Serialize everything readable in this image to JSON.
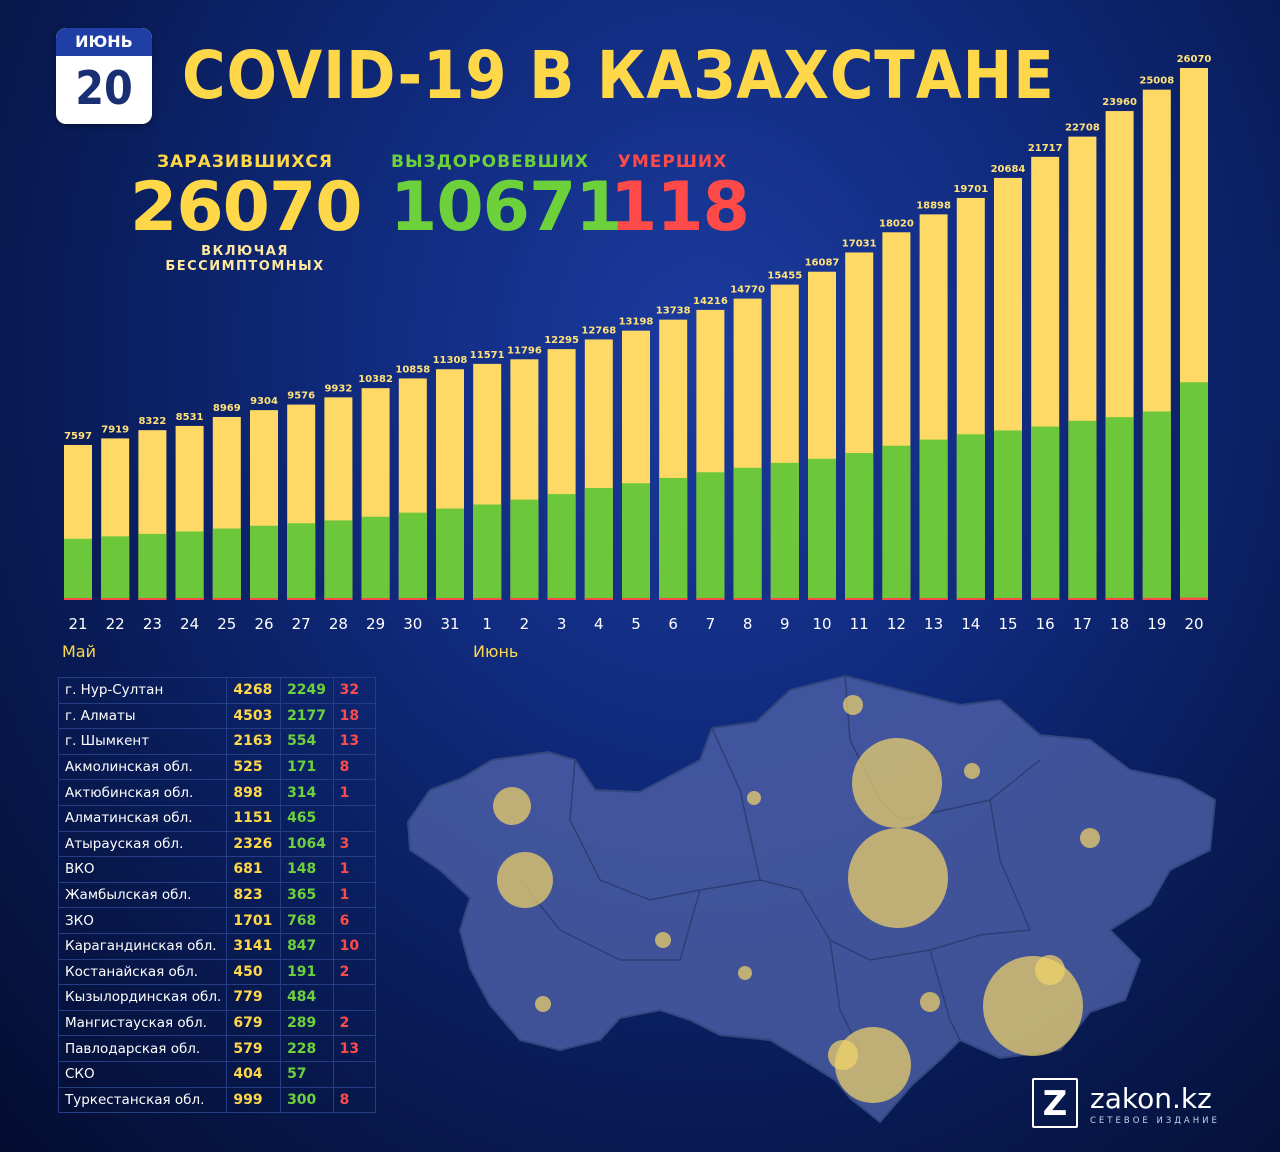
{
  "header": {
    "month": "ИЮНЬ",
    "day": "20",
    "title": "COVID-19 В КАЗАХСТАНЕ"
  },
  "stats": {
    "infected_label": "ЗАРАЗИВШИХСЯ",
    "infected_value": "26070",
    "infected_sub": "ВКЛЮЧАЯ БЕССИМПТОМНЫХ",
    "recovered_label": "ВЫЗДОРОВЕВШИХ",
    "recovered_value": "10671",
    "deaths_label": "УМЕРШИХ",
    "deaths_value": "118"
  },
  "colors": {
    "infected": "#ffd966",
    "recovered": "#6cc83a",
    "deaths": "#ff4a4a",
    "title": "#ffd84a"
  },
  "chart_data": {
    "type": "bar",
    "categories": [
      "21",
      "22",
      "23",
      "24",
      "25",
      "26",
      "27",
      "28",
      "29",
      "30",
      "31",
      "1",
      "2",
      "3",
      "4",
      "5",
      "6",
      "7",
      "8",
      "9",
      "10",
      "11",
      "12",
      "13",
      "14",
      "15",
      "16",
      "17",
      "18",
      "19",
      "20"
    ],
    "month_labels": [
      "Май",
      "Июнь"
    ],
    "series": [
      {
        "values": [
          7597,
          7919,
          8322,
          8531,
          8969,
          9304,
          9576,
          9932,
          10382,
          10858,
          11308,
          11571,
          11796,
          12295,
          12768,
          13198,
          13738,
          14216,
          14770,
          15455,
          16087,
          17031,
          18020,
          18898,
          19701,
          20684,
          21717,
          22708,
          23960,
          25008,
          26070
        ]
      },
      {
        "values": [
          3000,
          3120,
          3240,
          3360,
          3500,
          3640,
          3760,
          3900,
          4080,
          4280,
          4480,
          4680,
          4920,
          5190,
          5490,
          5720,
          5980,
          6260,
          6480,
          6720,
          6920,
          7200,
          7560,
          7860,
          8120,
          8310,
          8500,
          8780,
          8960,
          9240,
          10671
        ]
      },
      {
        "values": [
          35,
          35,
          35,
          35,
          35,
          35,
          35,
          35,
          35,
          37,
          37,
          37,
          38,
          38,
          38,
          40,
          42,
          45,
          48,
          50,
          56,
          60,
          70,
          76,
          82,
          86,
          92,
          96,
          100,
          106,
          118
        ]
      }
    ],
    "ylim": [
      0,
      26070
    ],
    "grid": false
  },
  "regions": [
    {
      "name": "г. Нур-Султан",
      "infected": "4268",
      "recovered": "2249",
      "deaths": "32"
    },
    {
      "name": "г. Алматы",
      "infected": "4503",
      "recovered": "2177",
      "deaths": "18"
    },
    {
      "name": "г. Шымкент",
      "infected": "2163",
      "recovered": "554",
      "deaths": "13"
    },
    {
      "name": "Акмолинская обл.",
      "infected": "525",
      "recovered": "171",
      "deaths": "8"
    },
    {
      "name": "Актюбинская обл.",
      "infected": "898",
      "recovered": "314",
      "deaths": "1"
    },
    {
      "name": "Алматинская обл.",
      "infected": "1151",
      "recovered": "465",
      "deaths": ""
    },
    {
      "name": "Атырауская обл.",
      "infected": "2326",
      "recovered": "1064",
      "deaths": "3"
    },
    {
      "name": "ВКО",
      "infected": "681",
      "recovered": "148",
      "deaths": "1"
    },
    {
      "name": "Жамбылская обл.",
      "infected": "823",
      "recovered": "365",
      "deaths": "1"
    },
    {
      "name": "ЗКО",
      "infected": "1701",
      "recovered": "768",
      "deaths": "6"
    },
    {
      "name": "Карагандинская обл.",
      "infected": "3141",
      "recovered": "847",
      "deaths": "10"
    },
    {
      "name": "Костанайская обл.",
      "infected": "450",
      "recovered": "191",
      "deaths": "2"
    },
    {
      "name": "Кызылординская обл.",
      "infected": "779",
      "recovered": "484",
      "deaths": ""
    },
    {
      "name": "Мангистауская обл.",
      "infected": "679",
      "recovered": "289",
      "deaths": "2"
    },
    {
      "name": "Павлодарская обл.",
      "infected": "579",
      "recovered": "228",
      "deaths": "13"
    },
    {
      "name": "СКО",
      "infected": "404",
      "recovered": "57",
      "deaths": ""
    },
    {
      "name": "Туркестанская обл.",
      "infected": "999",
      "recovered": "300",
      "deaths": "8"
    }
  ],
  "logo": {
    "mark": "Z",
    "name": "zakon.kz",
    "sub": "СЕТЕВОЕ ИЗДАНИЕ"
  }
}
